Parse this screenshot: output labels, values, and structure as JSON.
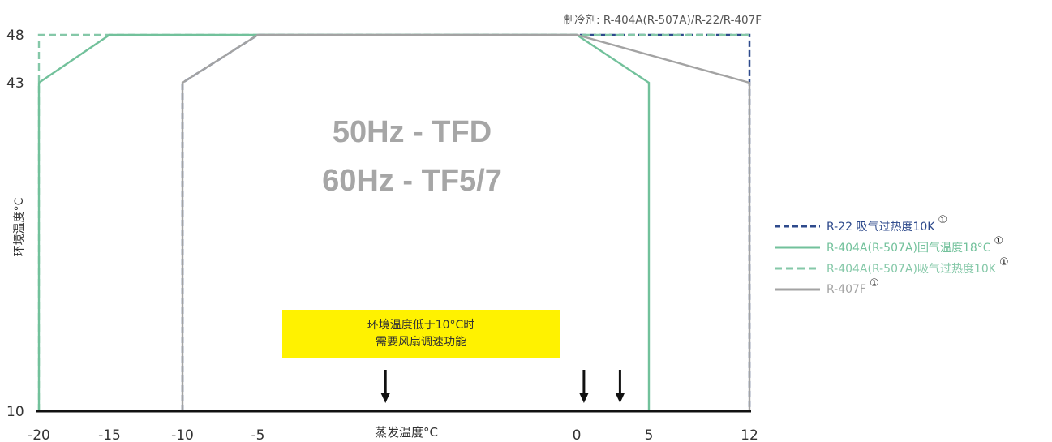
{
  "chart_data": {
    "type": "line",
    "refrigerant_note": "制冷剂: R-404A(R-507A)/R-22/R-407F",
    "xlabel": "蒸发温度°C",
    "ylabel": "环境温度°C",
    "center_text": [
      "50Hz - TFD",
      "60Hz - TF5/7"
    ],
    "x_ticks": [
      -20,
      -15,
      -10,
      -5,
      0,
      5,
      12
    ],
    "y_ticks": [
      10,
      43,
      48
    ],
    "xlim": [
      -20,
      12
    ],
    "ylim": [
      10,
      48
    ],
    "notice": [
      "环境温度低于10°C时",
      "需要风扇调速功能"
    ],
    "arrows_at_x": [
      -3,
      0.5,
      3
    ],
    "series": [
      {
        "name": "R-22 吸气过热度10K",
        "mark": "①",
        "color": "#2e4a8c",
        "style": "dashed",
        "points": [
          [
            -10,
            10
          ],
          [
            -10,
            43
          ],
          [
            -5,
            48
          ],
          [
            12,
            48
          ],
          [
            12,
            10
          ]
        ]
      },
      {
        "name": "R-404A(R-507A)回气温度18°C",
        "mark": "①",
        "color": "#72c19b",
        "style": "solid",
        "points": [
          [
            -20,
            10
          ],
          [
            -20,
            43
          ],
          [
            -15,
            48
          ],
          [
            0,
            48
          ],
          [
            5,
            43
          ],
          [
            5,
            10
          ]
        ]
      },
      {
        "name": "R-404A(R-507A)吸气过热度10K",
        "mark": "①",
        "color": "#85c8a8",
        "style": "dashed",
        "points": [
          [
            -20,
            10
          ],
          [
            -20,
            48
          ],
          [
            12,
            48
          ]
        ]
      },
      {
        "name": "R-407F",
        "mark": "①",
        "color": "#a3a3a3",
        "style": "solid",
        "points": [
          [
            -10,
            10
          ],
          [
            -10,
            43
          ],
          [
            -5,
            48
          ],
          [
            0,
            48
          ],
          [
            12,
            43
          ],
          [
            12,
            10
          ]
        ]
      }
    ]
  }
}
